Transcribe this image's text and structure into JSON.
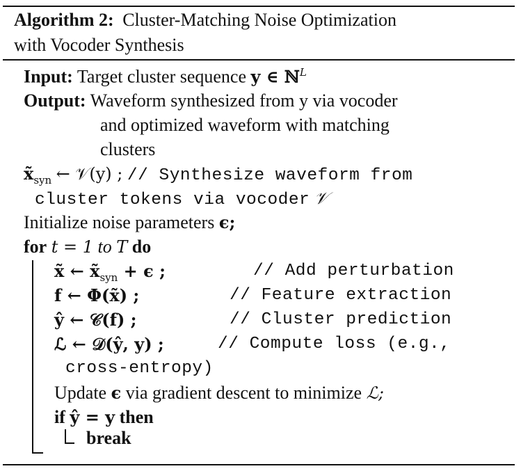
{
  "caption": {
    "label": "Algorithm 2:",
    "title_line1": "Cluster-Matching Noise Optimization",
    "title_line2": "with Vocoder Synthesis"
  },
  "input": {
    "label": "Input:",
    "text": "Target cluster sequence",
    "math": "y ∈ ℕ",
    "sup": "L"
  },
  "output": {
    "label": "Output:",
    "line1": "Waveform synthesized from y via vocoder",
    "line2": "and optimized waveform with matching",
    "line3": "clusters"
  },
  "synth": {
    "math": "x̃",
    "sub": "syn",
    "rhs": "← 𝒱(y) ;",
    "comment1": "// Synthesize waveform from",
    "comment2": "cluster tokens via vocoder",
    "comment2_math": "𝒱"
  },
  "init": {
    "text": "Initialize noise parameters",
    "math": "ϵ;"
  },
  "loop": {
    "for": "for",
    "range": "t = 1",
    "to": "to",
    "end": "T",
    "do": "do"
  },
  "body": [
    {
      "math": "x̃ ← x̃",
      "sub": "syn",
      "rest": " + ϵ ;",
      "comment": "// Add perturbation"
    },
    {
      "math": "f ← Φ(x̃) ;",
      "comment": "// Feature extraction"
    },
    {
      "math": "ŷ ← 𝒞(f) ;",
      "comment": "// Cluster prediction"
    },
    {
      "math": "ℒ ← 𝒟(ŷ, y) ;",
      "comment": "// Compute loss (e.g.,",
      "comment_cont": "cross-entropy)"
    }
  ],
  "update": {
    "text1": "Update",
    "math1": "ϵ",
    "text2": "via gradient descent to minimize",
    "math2": "ℒ;"
  },
  "cond": {
    "if": "if",
    "math": "ŷ = y",
    "then": "then",
    "break": "break"
  }
}
